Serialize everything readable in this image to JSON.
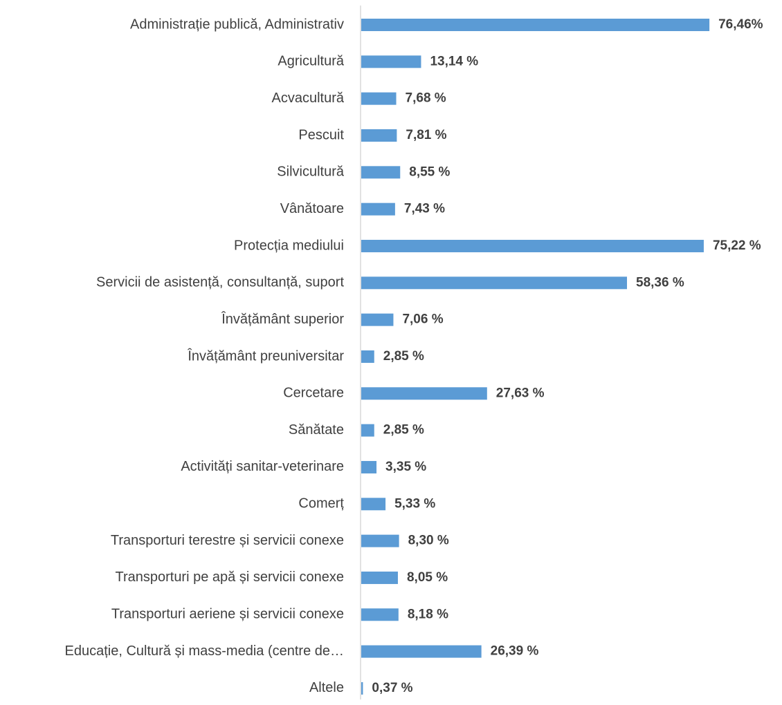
{
  "chart_data": {
    "type": "hbar",
    "color": "#5b9bd5",
    "categories": [
      "Administrație publică, Administrativ",
      "Agricultură",
      "Acvacultură",
      "Pescuit",
      "Silvicultură",
      "Vânătoare",
      "Protecția mediului",
      "Servicii de asistență, consultanță, suport",
      "Învățământ superior",
      "Învățământ preuniversitar",
      "Cercetare",
      "Sănătate",
      "Activități sanitar-veterinare",
      "Comerț",
      "Transporturi terestre și servicii conexe",
      "Transporturi pe apă și servicii conexe",
      "Transporturi aeriene și servicii conexe",
      "Educație, Cultură și mass-media (centre de…",
      "Altele"
    ],
    "values": [
      76.46,
      13.14,
      7.68,
      7.81,
      8.55,
      7.43,
      75.22,
      58.36,
      7.06,
      2.85,
      27.63,
      2.85,
      3.35,
      5.33,
      8.3,
      8.05,
      8.18,
      26.39,
      0.37
    ],
    "value_labels": [
      "76,46%",
      "13,14 %",
      "7,68 %",
      "7,81 %",
      "8,55 %",
      "7,43 %",
      "75,22 %",
      "58,36 %",
      "7,06 %",
      "2,85 %",
      "27,63 %",
      "2,85 %",
      "3,35 %",
      "5,33 %",
      "8,30 %",
      "8,05 %",
      "8,18 %",
      "26,39 %",
      "0,37 %"
    ]
  }
}
